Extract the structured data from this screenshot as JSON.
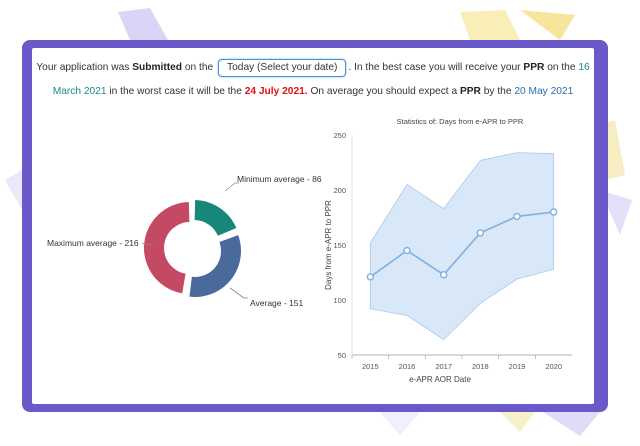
{
  "sentence": {
    "part1": "Your application was ",
    "submitted": "Submitted",
    "part2": " on the ",
    "date_button": "Today (Select your date)",
    "part3": ". In the best case you will receive your ",
    "ppr1": "PPR",
    "part4": " on the ",
    "best_date": "16 March 2021",
    "part5": " in the worst case it will be the ",
    "worst_date": "24 July 2021.",
    "part6": " On average you should expect a ",
    "ppr2": "PPR",
    "part7": " by the ",
    "avg_date": "20 May 2021"
  },
  "donut": {
    "labels": {
      "min": "Minimum average - 86",
      "max": "Maximum average - 216",
      "avg": "Average - 151"
    },
    "values": {
      "min": 86,
      "max": 216,
      "avg": 151
    },
    "colors": {
      "min": "#17877a",
      "max": "#c44a63",
      "avg": "#4a6a9c"
    }
  },
  "chart_data": {
    "type": "line",
    "title": "Statistics of: Days from e-APR to PPR",
    "xlabel": "e-APR AOR Date",
    "ylabel": "Days from e-APR to PPR",
    "x": [
      "2015",
      "2016",
      "2017",
      "2018",
      "2019",
      "2020"
    ],
    "ylim": [
      50,
      250
    ],
    "yticks": [
      "50",
      "100",
      "150",
      "200",
      "250"
    ],
    "series": [
      {
        "values": [
          121,
          145,
          123,
          161,
          176,
          180
        ]
      }
    ],
    "band": {
      "upper": [
        152,
        205,
        183,
        227,
        234,
        233
      ],
      "lower": [
        92,
        86,
        64,
        97,
        119,
        128
      ]
    },
    "colors": {
      "line": "#7fb0e0",
      "band": "#d8e8f8",
      "band_stroke": "#a9c8ec"
    },
    "grid": false
  }
}
